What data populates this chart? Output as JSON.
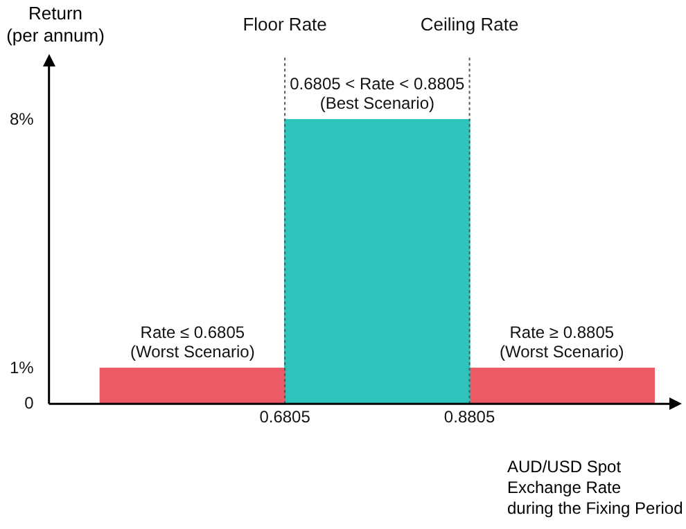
{
  "chart_data": {
    "type": "histogram",
    "ylabel": "Return\n(per annum)",
    "xlabel": "AUD/USD Spot\nExchange Rate\nduring the Fixing Period",
    "bins": [
      0.4805,
      0.6805,
      0.8805,
      1.0805
    ],
    "values": [
      1,
      8,
      1
    ],
    "colors": [
      "#ec5a66",
      "#2ec4bc",
      "#ec5a66"
    ],
    "xlim": [
      0.425,
      1.1
    ],
    "xticks": [
      0.6805,
      0.8805
    ],
    "ylim": [
      0,
      9.5
    ],
    "yticks": [
      {
        "value": 0,
        "label": "0"
      },
      {
        "value": 1,
        "label": "1%"
      },
      {
        "value": 8,
        "label": "8%"
      }
    ],
    "ref_lines": [
      {
        "axis": "x",
        "value": 0.6805,
        "label": "Floor Rate",
        "line_style": "dotted"
      },
      {
        "axis": "x",
        "value": 0.8805,
        "label": "Ceiling Rate",
        "line_style": "dotted"
      }
    ],
    "annotations": [
      {
        "text": "Rate ≤ 0.6805\n(Worst Scenario)",
        "x": 0.5805,
        "y": 1
      },
      {
        "text": "0.6805 < Rate < 0.8805\n(Best Scenario)",
        "x": 0.7805,
        "y": 8
      },
      {
        "text": "Rate ≥ 0.8805\n(Worst Scenario)",
        "x": 0.9805,
        "y": 1
      }
    ],
    "grid": false,
    "legend": false
  }
}
